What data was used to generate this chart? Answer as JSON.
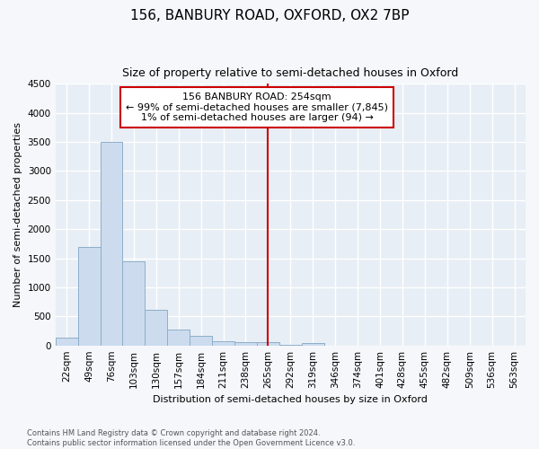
{
  "title": "156, BANBURY ROAD, OXFORD, OX2 7BP",
  "subtitle": "Size of property relative to semi-detached houses in Oxford",
  "xlabel": "Distribution of semi-detached houses by size in Oxford",
  "ylabel": "Number of semi-detached properties",
  "categories": [
    "22sqm",
    "49sqm",
    "76sqm",
    "103sqm",
    "130sqm",
    "157sqm",
    "184sqm",
    "211sqm",
    "238sqm",
    "265sqm",
    "292sqm",
    "319sqm",
    "346sqm",
    "374sqm",
    "401sqm",
    "428sqm",
    "455sqm",
    "482sqm",
    "509sqm",
    "536sqm",
    "563sqm"
  ],
  "values": [
    140,
    1700,
    3500,
    1450,
    620,
    270,
    160,
    80,
    55,
    50,
    5,
    40,
    0,
    0,
    0,
    0,
    0,
    0,
    0,
    0,
    0
  ],
  "bar_color": "#ccdcee",
  "bar_edge_color": "#8eaec9",
  "highlight_index": 9,
  "highlight_line_color": "#cc0000",
  "annotation_text": "156 BANBURY ROAD: 254sqm\n← 99% of semi-detached houses are smaller (7,845)\n1% of semi-detached houses are larger (94) →",
  "annotation_box_color": "white",
  "annotation_box_edge_color": "#cc0000",
  "ylim": [
    0,
    4500
  ],
  "yticks": [
    0,
    500,
    1000,
    1500,
    2000,
    2500,
    3000,
    3500,
    4000,
    4500
  ],
  "footer_text": "Contains HM Land Registry data © Crown copyright and database right 2024.\nContains public sector information licensed under the Open Government Licence v3.0.",
  "bg_color": "#f5f7fa",
  "plot_bg_color": "#e8eef5",
  "grid_color": "white",
  "title_fontsize": 11,
  "subtitle_fontsize": 9,
  "label_fontsize": 8,
  "annotation_fontsize": 8,
  "tick_fontsize": 7.5,
  "footer_fontsize": 6
}
